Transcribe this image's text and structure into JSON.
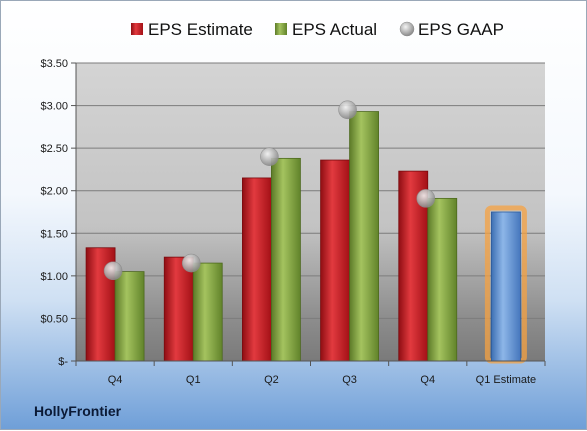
{
  "company": "HollyFrontier",
  "colors": {
    "estimate": "#c8141b",
    "actual": "#7ea23f",
    "gaap": "#a9a9a9",
    "estimate_future": "#5b8fd0",
    "highlight": "#f5a142"
  },
  "chart_data": {
    "type": "bar",
    "categories": [
      "Q4",
      "Q1",
      "Q2",
      "Q3",
      "Q4",
      "Q1 Estimate"
    ],
    "series": [
      {
        "name": "EPS Estimate",
        "values": [
          1.33,
          1.22,
          2.15,
          2.36,
          2.23,
          1.75
        ]
      },
      {
        "name": "EPS Actual",
        "values": [
          1.05,
          1.15,
          2.38,
          2.93,
          1.91,
          null
        ]
      },
      {
        "name": "EPS GAAP",
        "type": "scatter",
        "values": [
          1.06,
          1.15,
          2.4,
          2.95,
          1.91,
          null
        ]
      }
    ],
    "yticks": [
      "$-",
      "$0.50",
      "$1.00",
      "$1.50",
      "$2.00",
      "$2.50",
      "$3.00",
      "$3.50"
    ],
    "ylim": [
      0,
      3.5
    ],
    "grid": true,
    "legend": "top"
  }
}
